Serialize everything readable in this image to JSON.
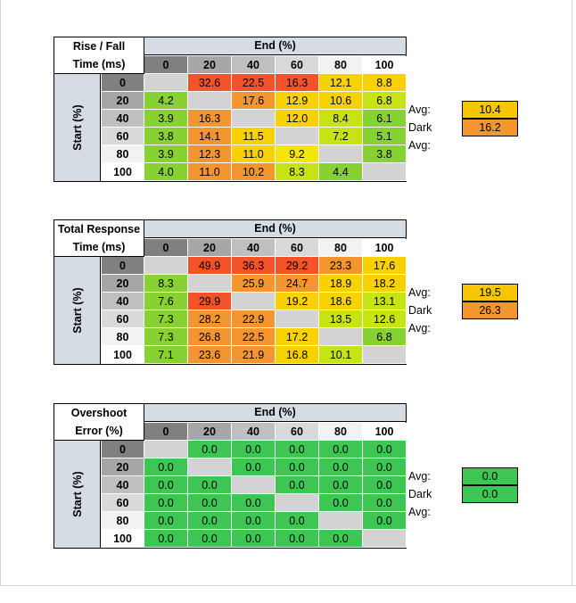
{
  "columns": [
    "0",
    "20",
    "40",
    "60",
    "80",
    "100"
  ],
  "rows": [
    "0",
    "20",
    "40",
    "60",
    "80",
    "100"
  ],
  "header_colors": [
    "#808080",
    "#a6a6a6",
    "#bfbfbf",
    "#d9d9d9",
    "#f2f2f2",
    "#ffffff"
  ],
  "colors": {
    "header_bg": "#d6dce4",
    "empty_cell": "#d3d3d3",
    "red": "#f4532a",
    "orange": "#f49630",
    "yellow": "#f7d100",
    "yellow_light": "#f5e60a",
    "yellow_green": "#c8e314",
    "green": "#88d133",
    "bright_green": "#3ec654"
  },
  "tables": [
    {
      "title_line1": "Rise / Fall",
      "title_line2": "Time (ms)",
      "end_label": "End (%)",
      "start_label": "Start (%)",
      "cells": [
        [
          "",
          "32.6",
          "22.5",
          "16.3",
          "12.1",
          "8.8"
        ],
        [
          "4.2",
          "",
          "17.6",
          "12.9",
          "10.6",
          "6.8"
        ],
        [
          "3.9",
          "16.3",
          "",
          "12.0",
          "8.4",
          "6.1"
        ],
        [
          "3.8",
          "14.1",
          "11.5",
          "",
          "7.2",
          "5.1"
        ],
        [
          "3.9",
          "12.3",
          "11.0",
          "9.2",
          "",
          "3.8"
        ],
        [
          "4.0",
          "11.0",
          "10.2",
          "8.3",
          "4.4",
          ""
        ]
      ],
      "cell_colors": [
        [
          "empty_cell",
          "red",
          "red",
          "red",
          "yellow",
          "yellow"
        ],
        [
          "green",
          "empty_cell",
          "orange",
          "yellow",
          "yellow",
          "yellow_green"
        ],
        [
          "green",
          "orange",
          "empty_cell",
          "yellow",
          "yellow_green",
          "green"
        ],
        [
          "green",
          "orange",
          "yellow",
          "empty_cell",
          "yellow_green",
          "green"
        ],
        [
          "green",
          "orange",
          "yellow",
          "yellow_light",
          "empty_cell",
          "green"
        ],
        [
          "green",
          "orange",
          "orange",
          "yellow_green",
          "green",
          "empty_cell"
        ]
      ],
      "avg_label": "Avg:",
      "avg_value": "10.4",
      "avg_color": "#f6c600",
      "dark_avg_label": "Dark Avg:",
      "dark_avg_value": "16.2",
      "dark_avg_color": "#f49630"
    },
    {
      "title_line1": "Total Response",
      "title_line2": "Time (ms)",
      "end_label": "End (%)",
      "start_label": "Start (%)",
      "cells": [
        [
          "",
          "49.9",
          "36.3",
          "29.2",
          "23.3",
          "17.6"
        ],
        [
          "8.3",
          "",
          "25.9",
          "24.7",
          "18.9",
          "18.2"
        ],
        [
          "7.6",
          "29.9",
          "",
          "19.2",
          "18.6",
          "13.1"
        ],
        [
          "7.3",
          "28.2",
          "22.9",
          "",
          "13.5",
          "12.6"
        ],
        [
          "7.3",
          "26.8",
          "22.5",
          "17.2",
          "",
          "6.8"
        ],
        [
          "7.1",
          "23.6",
          "21.9",
          "16.8",
          "10.1",
          ""
        ]
      ],
      "cell_colors": [
        [
          "empty_cell",
          "red",
          "red",
          "red",
          "orange",
          "yellow"
        ],
        [
          "green",
          "empty_cell",
          "orange",
          "orange",
          "yellow",
          "yellow"
        ],
        [
          "green",
          "red",
          "empty_cell",
          "yellow",
          "yellow",
          "yellow_green"
        ],
        [
          "green",
          "orange",
          "orange",
          "empty_cell",
          "yellow_green",
          "yellow_green"
        ],
        [
          "green",
          "orange",
          "orange",
          "yellow",
          "empty_cell",
          "green"
        ],
        [
          "green",
          "orange",
          "orange",
          "yellow",
          "yellow_green",
          "empty_cell"
        ]
      ],
      "avg_label": "Avg:",
      "avg_value": "19.5",
      "avg_color": "#f6c600",
      "dark_avg_label": "Dark Avg:",
      "dark_avg_value": "26.3",
      "dark_avg_color": "#f49630"
    },
    {
      "title_line1": "Overshoot",
      "title_line2": "Error (%)",
      "end_label": "End (%)",
      "start_label": "Start (%)",
      "cells": [
        [
          "",
          "0.0",
          "0.0",
          "0.0",
          "0.0",
          "0.0"
        ],
        [
          "0.0",
          "",
          "0.0",
          "0.0",
          "0.0",
          "0.0"
        ],
        [
          "0.0",
          "0.0",
          "",
          "0.0",
          "0.0",
          "0.0"
        ],
        [
          "0.0",
          "0.0",
          "0.0",
          "",
          "0.0",
          "0.0"
        ],
        [
          "0.0",
          "0.0",
          "0.0",
          "0.0",
          "",
          "0.0"
        ],
        [
          "0.0",
          "0.0",
          "0.0",
          "0.0",
          "0.0",
          ""
        ]
      ],
      "cell_colors": [
        [
          "empty_cell",
          "bright_green",
          "bright_green",
          "bright_green",
          "bright_green",
          "bright_green"
        ],
        [
          "bright_green",
          "empty_cell",
          "bright_green",
          "bright_green",
          "bright_green",
          "bright_green"
        ],
        [
          "bright_green",
          "bright_green",
          "empty_cell",
          "bright_green",
          "bright_green",
          "bright_green"
        ],
        [
          "bright_green",
          "bright_green",
          "bright_green",
          "empty_cell",
          "bright_green",
          "bright_green"
        ],
        [
          "bright_green",
          "bright_green",
          "bright_green",
          "bright_green",
          "empty_cell",
          "bright_green"
        ],
        [
          "bright_green",
          "bright_green",
          "bright_green",
          "bright_green",
          "bright_green",
          "empty_cell"
        ]
      ],
      "avg_label": "Avg:",
      "avg_value": "0.0",
      "avg_color": "#3ec654",
      "dark_avg_label": "Dark Avg:",
      "dark_avg_value": "0.0",
      "dark_avg_color": "#3ec654"
    }
  ]
}
